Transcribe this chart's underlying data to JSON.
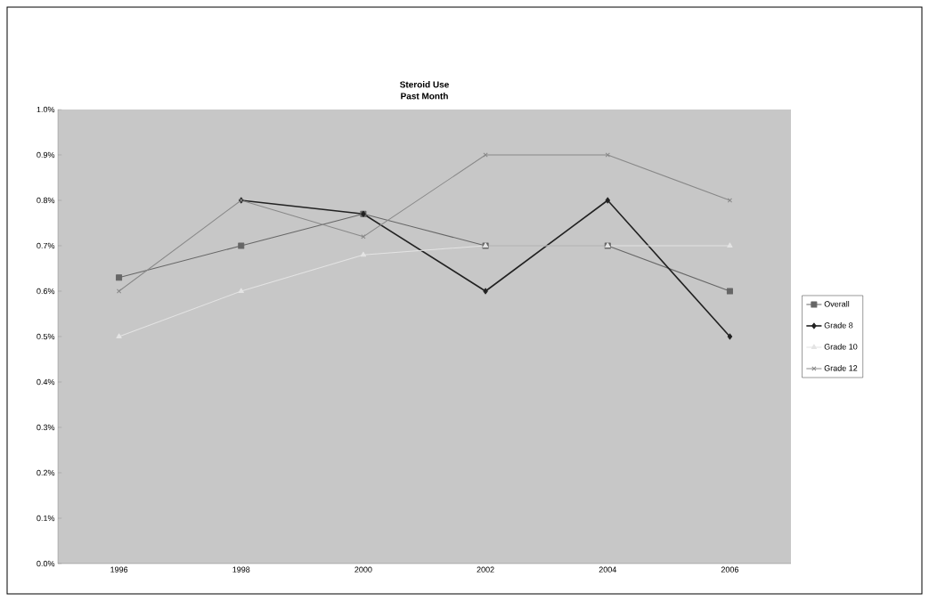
{
  "chart_data": {
    "type": "line",
    "title": "Steroid Use",
    "subtitle": "Past Month",
    "categories": [
      "1996",
      "1998",
      "2000",
      "2002",
      "2004",
      "2006"
    ],
    "ylim": [
      0,
      1.0
    ],
    "yticks": [
      {
        "value": 0,
        "label": "0.0%"
      },
      {
        "value": 0.1,
        "label": "0.1%"
      },
      {
        "value": 0.2,
        "label": "0.2%"
      },
      {
        "value": 0.3,
        "label": "0.3%"
      },
      {
        "value": 0.4,
        "label": "0.4%"
      },
      {
        "value": 0.5,
        "label": "0.5%"
      },
      {
        "value": 0.6,
        "label": "0.6%"
      },
      {
        "value": 0.7,
        "label": "0.7%"
      },
      {
        "value": 0.8,
        "label": "0.8%"
      },
      {
        "value": 0.9,
        "label": "0.9%"
      },
      {
        "value": 1.0,
        "label": "1.0%"
      }
    ],
    "legend": "right",
    "series": [
      {
        "name": "Overall",
        "color": "#666666",
        "marker": "square",
        "values": [
          0.63,
          0.7,
          0.77,
          0.7,
          0.7,
          0.6
        ]
      },
      {
        "name": "Grade 8",
        "color": "#222222",
        "marker": "diamond",
        "values": [
          null,
          0.8,
          0.77,
          0.6,
          0.8,
          0.5
        ]
      },
      {
        "name": "Grade 10",
        "color": "#e4e4e4",
        "marker": "triangle",
        "values": [
          0.5,
          0.6,
          0.68,
          0.7,
          0.7,
          0.7
        ]
      },
      {
        "name": "Grade 12",
        "color": "#888888",
        "marker": "cross",
        "values": [
          0.6,
          0.8,
          0.72,
          0.9,
          0.9,
          0.8
        ]
      }
    ]
  }
}
